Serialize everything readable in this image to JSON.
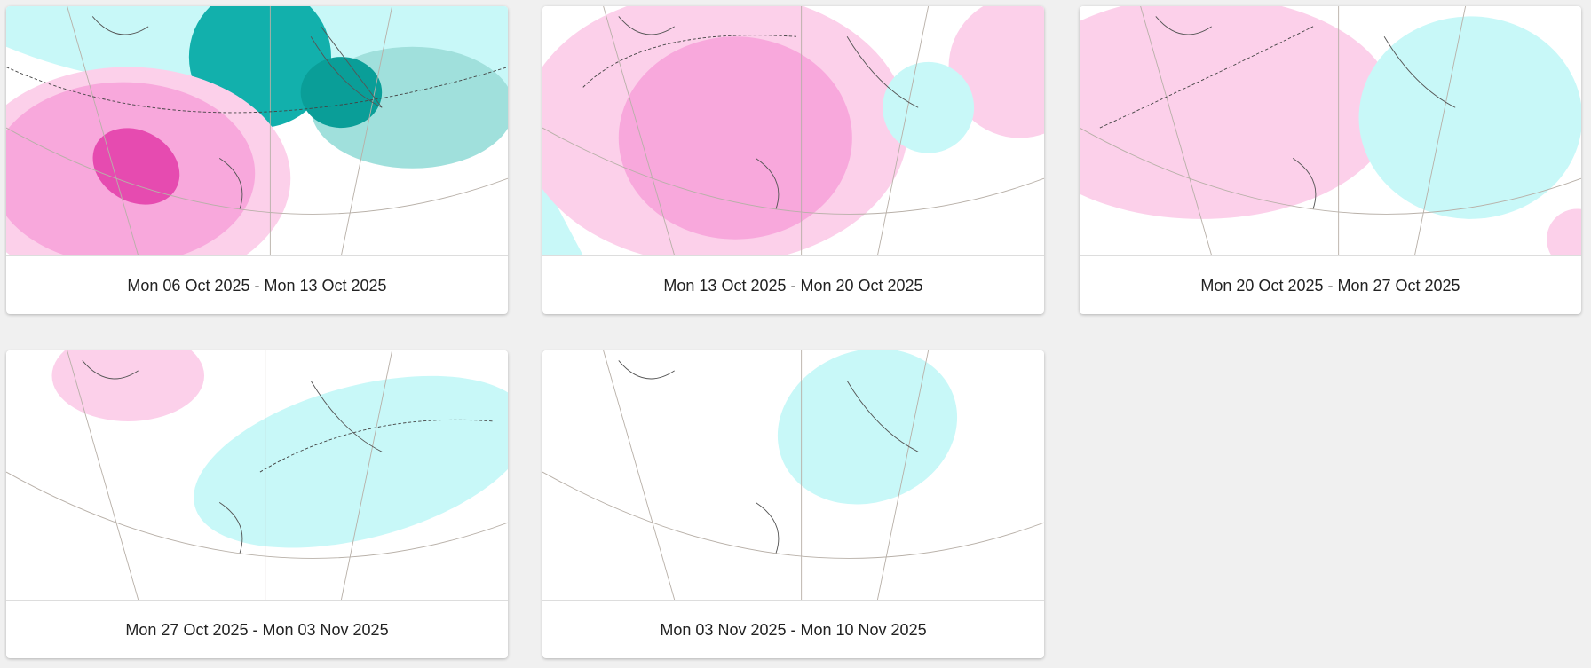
{
  "cards": [
    {
      "caption": "Mon 06 Oct 2025 - Mon 13 Oct 2025"
    },
    {
      "caption": "Mon 13 Oct 2025 - Mon 20 Oct 2025"
    },
    {
      "caption": "Mon 20 Oct 2025 - Mon 27 Oct 2025"
    },
    {
      "caption": "Mon 27 Oct 2025 - Mon 03 Nov 2025"
    },
    {
      "caption": "Mon 03 Nov 2025 - Mon 10 Nov 2025"
    }
  ]
}
